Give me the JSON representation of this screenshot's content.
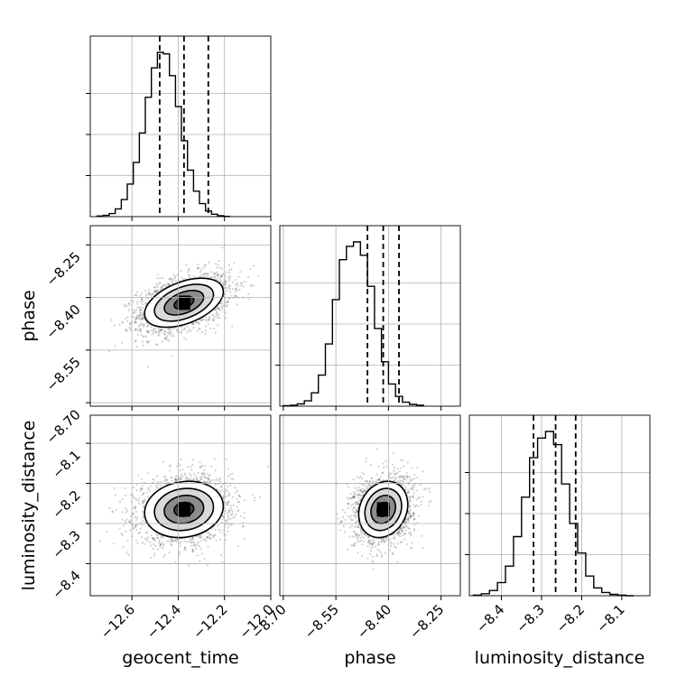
{
  "chart_data": {
    "type": "corner",
    "parameters": [
      {
        "name": "geocent_time",
        "range": [
          -12.78,
          -12.0
        ],
        "ticks": [
          -12.6,
          -12.4,
          -12.2,
          -12.0
        ],
        "tick_labels": [
          "−12.6",
          "−12.4",
          "−12.2",
          "−12.0"
        ],
        "quantiles": [
          -12.48,
          -12.375,
          -12.27
        ],
        "mean": -12.375,
        "sd": 0.085
      },
      {
        "name": "phase",
        "range": [
          -8.71,
          -8.195
        ],
        "ticks": [
          -8.7,
          -8.55,
          -8.4,
          -8.25
        ],
        "tick_labels": [
          "−8.70",
          "−8.55",
          "−8.40",
          "−8.25"
        ],
        "quantiles": [
          -8.46,
          -8.415,
          -8.37
        ],
        "mean": -8.415,
        "sd": 0.035
      },
      {
        "name": "luminosity_distance",
        "range": [
          -8.48,
          -8.03
        ],
        "ticks": [
          -8.4,
          -8.3,
          -8.2,
          -8.1
        ],
        "tick_labels": [
          "−8.4",
          "−8.3",
          "−8.2",
          "−8.1"
        ],
        "quantiles": [
          -8.32,
          -8.265,
          -8.215
        ],
        "mean": -8.265,
        "sd": 0.035
      }
    ],
    "histograms": [
      {
        "param": "geocent_time",
        "bin_edges_start": -12.75,
        "bin_width": 0.026,
        "counts": [
          2,
          4,
          10,
          25,
          55,
          105,
          175,
          270,
          385,
          480,
          530,
          525,
          455,
          355,
          245,
          150,
          82,
          42,
          18,
          8,
          3,
          1
        ]
      },
      {
        "param": "phase",
        "bin_edges_start": -8.7,
        "bin_width": 0.02,
        "counts": [
          1,
          2,
          5,
          12,
          30,
          70,
          140,
          240,
          330,
          360,
          370,
          340,
          270,
          175,
          100,
          50,
          22,
          9,
          4,
          2
        ]
      },
      {
        "param": "luminosity_distance",
        "bin_edges_start": -8.47,
        "bin_width": 0.02,
        "counts": [
          1,
          3,
          8,
          20,
          45,
          90,
          150,
          210,
          240,
          250,
          230,
          170,
          110,
          65,
          30,
          12,
          5,
          2,
          1,
          0
        ]
      }
    ],
    "contour_levels": [
      "0.5 sigma",
      "1.0 sigma",
      "1.5 sigma",
      "2.0 sigma"
    ],
    "grid": true,
    "quantile_lines": "dashed"
  }
}
